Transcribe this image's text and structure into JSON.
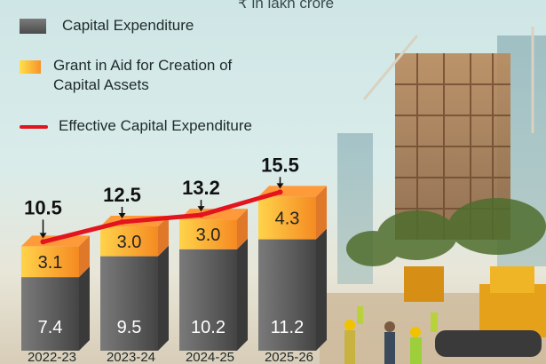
{
  "header": {
    "unit": "₹ in lakh crore"
  },
  "legend": {
    "capital_expenditure": "Capital Expenditure",
    "grant_in_aid": "Grant in Aid for Creation of Capital Assets",
    "effective": "Effective Capital Expenditure"
  },
  "colors": {
    "capital_expenditure": "#5a5a5a",
    "grant_in_aid": "#f7a030",
    "effective_line": "#e3141e"
  },
  "chart_data": {
    "type": "bar",
    "stacked": true,
    "categories": [
      "2022-23",
      "2023-24",
      "2024-25",
      "2025-26"
    ],
    "series": [
      {
        "name": "Capital Expenditure",
        "values": [
          7.4,
          9.5,
          10.2,
          11.2
        ]
      },
      {
        "name": "Grant in Aid for Creation of Capital Assets",
        "values": [
          3.1,
          3.0,
          3.0,
          4.3
        ]
      }
    ],
    "line": {
      "name": "Effective Capital Expenditure",
      "values": [
        10.5,
        12.5,
        13.2,
        15.5
      ]
    },
    "title": "",
    "xlabel": "",
    "ylabel": "",
    "legend_position": "top-left",
    "grid": false
  }
}
